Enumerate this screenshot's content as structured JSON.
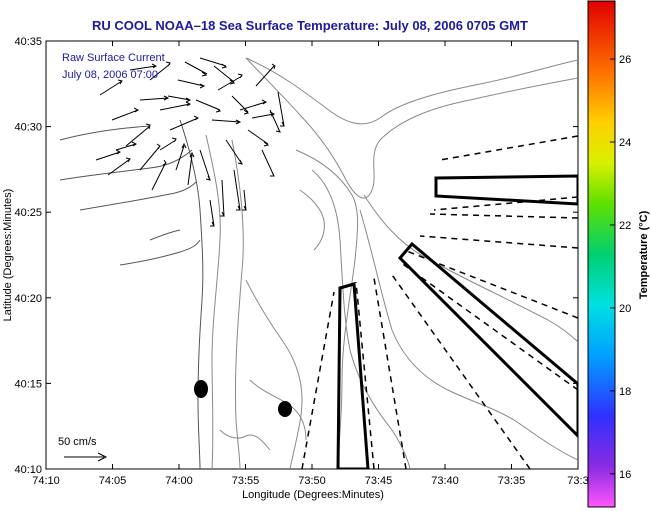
{
  "title": "RU COOL  NOAA–18  Sea Surface Temperature:  July 08, 2006 0705 GMT",
  "overlay": {
    "line1": "Raw Surface Current",
    "line2": "July 08, 2006 07:00"
  },
  "scale": {
    "label": "50 cm/s"
  },
  "axes": {
    "xlabel": "Longitude (Degrees:Minutes)",
    "ylabel": "Latitude (Degrees:Minutes)",
    "x_ticks": [
      "74:10",
      "74:05",
      "74:00",
      "73:55",
      "73:50",
      "73:45",
      "73:40",
      "73:35",
      "73:3"
    ],
    "y_ticks": [
      "40:35",
      "40:30",
      "40:25",
      "40:20",
      "40:15",
      "40:10"
    ]
  },
  "colorbar": {
    "label": "Temperature (°C)",
    "ticks": [
      "26",
      "24",
      "22",
      "20",
      "18",
      "16"
    ],
    "range": [
      15.2,
      27.4
    ]
  },
  "colors": {
    "title": "#1a1aa0",
    "contour": "#888888",
    "land": "#ffffff"
  },
  "markers": [
    {
      "name": "buoy-marker-west",
      "lon_min": -59.9,
      "lat_min": 14.6
    },
    {
      "name": "buoy-marker-east",
      "lon_min": -57.9,
      "lat_min": 13.5
    }
  ]
}
